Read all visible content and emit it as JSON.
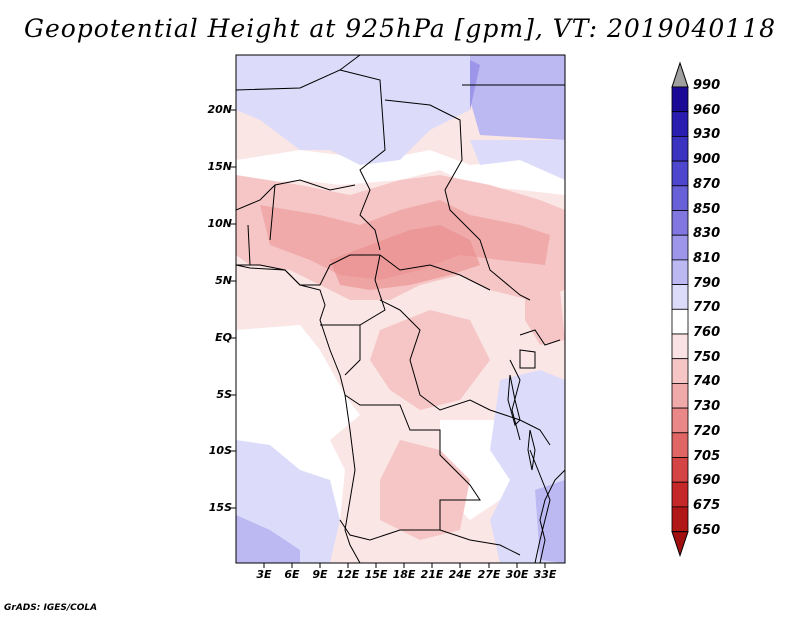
{
  "title": "Geopotential Height at 925hPa [gpm], VT: 2019040118",
  "credit": "GrADS: IGES/COLA",
  "lat_labels": [
    "20N",
    "15N",
    "10N",
    "5N",
    "EQ",
    "5S",
    "10S",
    "15S"
  ],
  "lon_labels": [
    "3E",
    "6E",
    "9E",
    "12E",
    "15E",
    "18E",
    "21E",
    "24E",
    "27E",
    "30E",
    "33E"
  ],
  "colorbar": {
    "levels": [
      "990",
      "960",
      "930",
      "900",
      "870",
      "850",
      "830",
      "810",
      "790",
      "770",
      "760",
      "750",
      "740",
      "730",
      "720",
      "705",
      "690",
      "675",
      "650"
    ],
    "colors": [
      "#a0a0a0",
      "#1a0a96",
      "#2a1eb0",
      "#3c32c0",
      "#4e46cc",
      "#6860d8",
      "#8078e0",
      "#9c96ea",
      "#bcb8f2",
      "#dcdcfa",
      "#ffffff",
      "#fbe2e2",
      "#f6c6c6",
      "#f0aaaa",
      "#ea8888",
      "#e06666",
      "#d44444",
      "#c42828",
      "#b01818",
      "#a01010"
    ]
  }
}
